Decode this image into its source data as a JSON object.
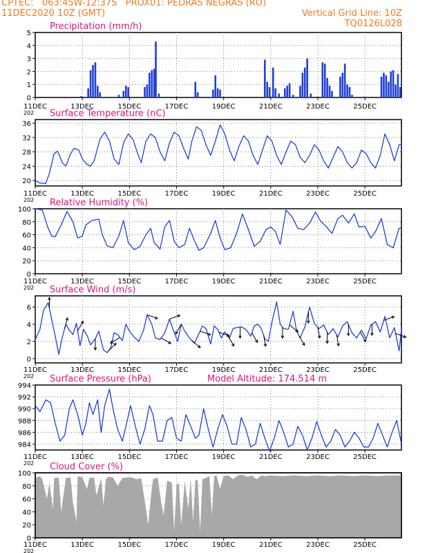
{
  "header": {
    "line1_left": "CPTEC:   063:45W-12:37S   PROX01: PEDRAS NEGRAS (RO)",
    "line2_left": "11DEC2020 10Z (GMT)",
    "line2_right": "Vertical Grid Line: 10Z",
    "line3_right": "TQ0126L028"
  },
  "x_axis": {
    "ticks": [
      "11DEC",
      "13DEC",
      "15DEC",
      "17DEC",
      "19DEC",
      "21DEC",
      "23DEC",
      "25DEC"
    ],
    "year_stub": "202"
  },
  "colors": {
    "title": "#e0117f",
    "header": "#f07a1e",
    "line": "#1f3fd6",
    "cloud": "#a8a8a8"
  },
  "chart_data": [
    {
      "id": "precip",
      "type": "bar",
      "title": "Precipitation (mm/h)",
      "ylim": [
        0,
        5
      ],
      "yticks": [
        0,
        1,
        2,
        3,
        4,
        5
      ],
      "x_unit": "days since 11DEC 10Z",
      "points": [
        [
          1.95,
          0.1
        ],
        [
          2.25,
          0.7
        ],
        [
          2.35,
          2.1
        ],
        [
          2.45,
          2.5
        ],
        [
          2.55,
          2.7
        ],
        [
          2.65,
          0.9
        ],
        [
          2.75,
          0.4
        ],
        [
          3.55,
          0.2
        ],
        [
          3.75,
          0.5
        ],
        [
          3.85,
          0.9
        ],
        [
          3.95,
          0.8
        ],
        [
          4.65,
          0.8
        ],
        [
          4.75,
          1.0
        ],
        [
          4.85,
          1.9
        ],
        [
          4.95,
          2.1
        ],
        [
          5.05,
          2.2
        ],
        [
          5.12,
          4.3
        ],
        [
          5.25,
          0.3
        ],
        [
          6.8,
          1.2
        ],
        [
          6.9,
          0.4
        ],
        [
          7.55,
          0.6
        ],
        [
          7.65,
          1.7
        ],
        [
          7.75,
          0.7
        ],
        [
          7.85,
          0.6
        ],
        [
          9.75,
          2.9
        ],
        [
          9.85,
          1.2
        ],
        [
          9.95,
          0.8
        ],
        [
          10.1,
          2.3
        ],
        [
          10.2,
          0.7
        ],
        [
          10.35,
          0.3
        ],
        [
          10.6,
          0.7
        ],
        [
          10.7,
          0.9
        ],
        [
          10.8,
          1.1
        ],
        [
          10.95,
          0.2
        ],
        [
          11.25,
          0.9
        ],
        [
          11.35,
          1.9
        ],
        [
          11.45,
          2.3
        ],
        [
          11.55,
          3.0
        ],
        [
          11.7,
          0.3
        ],
        [
          12.2,
          2.7
        ],
        [
          12.3,
          2.6
        ],
        [
          12.4,
          1.5
        ],
        [
          12.5,
          0.9
        ],
        [
          12.6,
          0.5
        ],
        [
          12.95,
          1.6
        ],
        [
          13.05,
          1.9
        ],
        [
          13.15,
          2.6
        ],
        [
          13.25,
          1.0
        ],
        [
          13.35,
          0.8
        ],
        [
          13.45,
          0.2
        ],
        [
          14.7,
          1.6
        ],
        [
          14.8,
          1.9
        ],
        [
          14.9,
          1.7
        ],
        [
          15.0,
          1.2
        ],
        [
          15.1,
          2.0
        ],
        [
          15.2,
          2.1
        ],
        [
          15.3,
          1.0
        ],
        [
          15.4,
          1.8
        ],
        [
          15.5,
          0.8
        ]
      ]
    },
    {
      "id": "temp",
      "type": "line",
      "title": "Surface Temperature (nC)",
      "ylim": [
        18.5,
        37
      ],
      "yticks": [
        20,
        24,
        28,
        32,
        36
      ],
      "x": [
        0,
        0.2,
        0.45,
        0.6,
        0.8,
        0.95,
        1.15,
        1.3,
        1.5,
        1.65,
        1.85,
        2.0,
        2.2,
        2.35,
        2.5,
        2.75,
        2.95,
        3.15,
        3.35,
        3.55,
        3.75,
        3.95,
        4.15,
        4.35,
        4.5,
        4.7,
        4.9,
        5.1,
        5.3,
        5.5,
        5.7,
        5.9,
        6.1,
        6.3,
        6.5,
        6.65,
        6.85,
        7.05,
        7.25,
        7.45,
        7.65,
        7.85,
        8.05,
        8.25,
        8.45,
        8.65,
        8.85,
        9.05,
        9.25,
        9.45,
        9.65,
        9.85,
        10.05,
        10.25,
        10.45,
        10.65,
        10.85,
        11.05,
        11.25,
        11.45,
        11.65,
        11.85,
        12.05,
        12.25,
        12.45,
        12.65,
        12.85,
        13.05,
        13.25,
        13.45,
        13.65,
        13.85,
        14.05,
        14.25,
        14.45,
        14.65,
        14.85,
        15.05,
        15.25,
        15.45,
        15.55
      ],
      "y": [
        20,
        19.3,
        19.2,
        22,
        27.5,
        28.2,
        25,
        24,
        27.5,
        29,
        28.5,
        26,
        24.5,
        24,
        25.5,
        31.5,
        33.5,
        31,
        26,
        24.5,
        30.5,
        33,
        31.5,
        27.5,
        25,
        31,
        33,
        32,
        28,
        25.5,
        30.5,
        33.5,
        32.5,
        29,
        26,
        31,
        35,
        34,
        30,
        27,
        31,
        35.5,
        33,
        28.5,
        25.5,
        29.5,
        32.5,
        31,
        27,
        24.5,
        28.5,
        32.5,
        31,
        27,
        24.5,
        28,
        31,
        30,
        26.5,
        25,
        27,
        30,
        28.5,
        25.5,
        23.5,
        26.5,
        29.5,
        28,
        25,
        23.5,
        25,
        28.5,
        27.5,
        25,
        23.5,
        27,
        33,
        30,
        25.5,
        30,
        30
      ]
    },
    {
      "id": "rh",
      "type": "line",
      "title": "Relative Humidity (%)",
      "ylim": [
        0,
        100
      ],
      "yticks": [
        0,
        20,
        40,
        60,
        80,
        100
      ],
      "x": [
        0,
        0.3,
        0.55,
        0.7,
        0.85,
        1.1,
        1.35,
        1.6,
        1.8,
        2.0,
        2.15,
        2.4,
        2.7,
        2.85,
        3.05,
        3.3,
        3.55,
        3.75,
        3.95,
        4.2,
        4.45,
        4.7,
        4.9,
        5.05,
        5.3,
        5.5,
        5.7,
        5.9,
        6.1,
        6.35,
        6.55,
        6.75,
        6.95,
        7.15,
        7.45,
        7.65,
        7.85,
        8.05,
        8.3,
        8.55,
        8.8,
        9.05,
        9.3,
        9.55,
        9.8,
        10.0,
        10.2,
        10.4,
        10.65,
        10.9,
        11.15,
        11.4,
        11.65,
        11.9,
        12.1,
        12.35,
        12.6,
        12.85,
        13.05,
        13.3,
        13.55,
        13.75,
        14.0,
        14.25,
        14.45,
        14.7,
        14.95,
        15.2,
        15.45,
        15.55
      ],
      "y": [
        100,
        98,
        70,
        58,
        57,
        75,
        96,
        80,
        55,
        58,
        75,
        82,
        84,
        60,
        43,
        40,
        58,
        82,
        48,
        37,
        42,
        60,
        70,
        48,
        38,
        72,
        82,
        50,
        40,
        45,
        70,
        52,
        36,
        40,
        62,
        82,
        55,
        37,
        40,
        62,
        92,
        68,
        42,
        50,
        68,
        72,
        65,
        45,
        98,
        88,
        70,
        68,
        78,
        95,
        82,
        73,
        62,
        85,
        90,
        78,
        92,
        72,
        73,
        55,
        65,
        85,
        45,
        40,
        70,
        70
      ]
    },
    {
      "id": "wind",
      "type": "line",
      "title": "Surface Wind (m/s)",
      "ylim": [
        -0.5,
        7.3
      ],
      "yticks": [
        0,
        2,
        4,
        6
      ],
      "x": [
        0,
        0.2,
        0.35,
        0.55,
        0.7,
        0.85,
        1.0,
        1.15,
        1.3,
        1.45,
        1.6,
        1.75,
        1.9,
        2.05,
        2.2,
        2.35,
        2.55,
        2.7,
        2.9,
        3.05,
        3.2,
        3.35,
        3.5,
        3.7,
        3.85,
        4.0,
        4.2,
        4.4,
        4.6,
        4.75,
        4.95,
        5.1,
        5.3,
        5.5,
        5.7,
        5.85,
        6.05,
        6.2,
        6.35,
        6.55,
        6.75,
        6.9,
        7.1,
        7.25,
        7.45,
        7.6,
        7.75,
        7.9,
        8.05,
        8.25,
        8.4,
        8.55,
        8.75,
        8.95,
        9.15,
        9.3,
        9.45,
        9.6,
        9.75,
        9.9,
        10.05,
        10.25,
        10.4,
        10.55,
        10.75,
        10.95,
        11.1,
        11.25,
        11.45,
        11.65,
        11.85,
        12.05,
        12.25,
        12.45,
        12.65,
        12.85,
        13.05,
        13.25,
        13.45,
        13.65,
        13.85,
        14.05,
        14.25,
        14.45,
        14.65,
        14.85,
        15.05,
        15.25,
        15.45,
        15.55
      ],
      "y": [
        2.2,
        3.4,
        5.6,
        6.5,
        4.5,
        2.6,
        0.5,
        2.5,
        4.0,
        3.3,
        2.8,
        4.1,
        1.5,
        3.4,
        2.7,
        1.6,
        2.3,
        3.2,
        1.0,
        0.7,
        1.2,
        3.0,
        2.8,
        2.1,
        4.0,
        3.2,
        2.5,
        2.0,
        3.3,
        5.1,
        4.0,
        2.4,
        2.2,
        3.0,
        4.6,
        3.4,
        2.0,
        4.0,
        3.2,
        2.4,
        1.8,
        2.6,
        3.8,
        3.5,
        1.7,
        3.8,
        3.4,
        2.4,
        3.1,
        2.4,
        3.5,
        3.6,
        3.7,
        3.4,
        2.6,
        3.8,
        4.0,
        3.5,
        2.3,
        2.0,
        4.2,
        6.6,
        4.0,
        3.5,
        3.4,
        5.5,
        3.2,
        2.4,
        3.7,
        6.0,
        4.1,
        3.5,
        3.9,
        2.8,
        3.5,
        2.5,
        3.8,
        4.3,
        3.0,
        2.4,
        3.3,
        2.3,
        3.9,
        4.3,
        3.1,
        4.9,
        2.4,
        3.6,
        0.9,
        3.4
      ],
      "arrows": [
        [
          0.6,
          90
        ],
        [
          1.25,
          75
        ],
        [
          1.8,
          60
        ],
        [
          2.55,
          -90
        ],
        [
          3.1,
          45
        ],
        [
          3.6,
          -150
        ],
        [
          4.75,
          -20
        ],
        [
          5.35,
          -30
        ],
        [
          5.7,
          20
        ],
        [
          6.2,
          -120
        ],
        [
          6.65,
          -40
        ],
        [
          7.0,
          -20
        ],
        [
          7.8,
          -20
        ],
        [
          8.2,
          -60
        ],
        [
          8.7,
          -90
        ],
        [
          9.2,
          -60
        ],
        [
          9.7,
          -80
        ],
        [
          10.5,
          -90
        ],
        [
          10.8,
          -40
        ],
        [
          11.2,
          -60
        ],
        [
          11.6,
          -90
        ],
        [
          12.0,
          -80
        ],
        [
          12.4,
          -90
        ],
        [
          12.8,
          -80
        ],
        [
          13.3,
          -90
        ],
        [
          13.8,
          -60
        ],
        [
          14.3,
          -90
        ],
        [
          14.8,
          20
        ],
        [
          15.3,
          -20
        ]
      ]
    },
    {
      "id": "press",
      "type": "line",
      "title": "Surface Pressure (hPa)",
      "subtitle": "Model Altitude: 174.514 m",
      "ylim": [
        983,
        994
      ],
      "yticks": [
        984,
        986,
        988,
        990,
        992,
        994
      ],
      "x": [
        0,
        0.2,
        0.45,
        0.65,
        0.85,
        1.05,
        1.25,
        1.45,
        1.6,
        1.8,
        2.0,
        2.15,
        2.3,
        2.45,
        2.65,
        2.8,
        2.95,
        3.15,
        3.3,
        3.5,
        3.7,
        3.85,
        4.05,
        4.25,
        4.45,
        4.65,
        4.85,
        5.0,
        5.2,
        5.4,
        5.6,
        5.8,
        6.0,
        6.2,
        6.4,
        6.6,
        6.8,
        6.95,
        7.15,
        7.35,
        7.55,
        7.75,
        7.95,
        8.15,
        8.35,
        8.55,
        8.75,
        8.95,
        9.15,
        9.35,
        9.55,
        9.75,
        9.95,
        10.15,
        10.35,
        10.55,
        10.75,
        10.95,
        11.15,
        11.35,
        11.55,
        11.75,
        11.95,
        12.15,
        12.35,
        12.55,
        12.75,
        12.95,
        13.15,
        13.35,
        13.55,
        13.75,
        13.95,
        14.15,
        14.35,
        14.55,
        14.75,
        14.95,
        15.15,
        15.35,
        15.55
      ],
      "y": [
        990.5,
        989.5,
        991.5,
        991,
        987.5,
        984.5,
        985.5,
        990,
        991.5,
        989,
        985.5,
        987.5,
        991,
        989,
        991.5,
        986,
        990.5,
        993.3,
        990,
        986.5,
        984.5,
        987,
        990.5,
        987,
        984,
        986.5,
        990.5,
        989,
        984.5,
        984.5,
        988,
        988.5,
        985,
        984.5,
        989,
        987,
        985,
        985.5,
        990,
        986.5,
        983.5,
        986.5,
        989,
        987,
        984,
        984,
        988.5,
        986.5,
        983.5,
        984,
        987.5,
        985,
        982.8,
        985,
        988,
        986,
        983.5,
        984,
        987,
        985.5,
        983,
        985,
        987.8,
        985.5,
        983.5,
        984.5,
        986.5,
        985.5,
        983.5,
        984.5,
        986,
        985,
        983.5,
        983.5,
        985,
        987.5,
        985.5,
        983.5,
        986,
        988,
        984
      ]
    },
    {
      "id": "cloud",
      "type": "area",
      "title": "Cloud Cover (%)",
      "ylim": [
        0,
        100
      ],
      "yticks": [
        0,
        20,
        40,
        60,
        80,
        100
      ],
      "x": [
        0,
        0.2,
        0.3,
        0.5,
        0.6,
        0.75,
        0.8,
        1.0,
        1.1,
        1.3,
        1.5,
        1.6,
        1.75,
        1.8,
        2.0,
        2.2,
        2.3,
        2.5,
        2.6,
        2.8,
        2.9,
        3.0,
        3.1,
        3.3,
        3.5,
        3.7,
        3.9,
        4.1,
        4.3,
        4.5,
        4.7,
        4.8,
        4.9,
        5.0,
        5.2,
        5.35,
        5.45,
        5.6,
        5.8,
        5.9,
        6.0,
        6.1,
        6.2,
        6.35,
        6.5,
        6.6,
        6.7,
        6.8,
        6.9,
        7.0,
        7.1,
        7.3,
        7.4,
        7.5,
        7.6,
        7.7,
        7.85,
        8.0,
        8.2,
        8.4,
        8.6,
        8.8,
        9.0,
        9.2,
        9.4,
        9.6,
        9.8,
        10.0,
        10.5,
        11.0,
        11.5,
        12.0,
        12.5,
        13.0,
        13.5,
        14.0,
        14.5,
        15.0,
        15.55
      ],
      "y": [
        92,
        95,
        90,
        60,
        85,
        45,
        92,
        93,
        40,
        92,
        93,
        55,
        25,
        95,
        93,
        75,
        92,
        93,
        65,
        92,
        50,
        90,
        94,
        93,
        80,
        92,
        93,
        93,
        90,
        92,
        45,
        20,
        60,
        90,
        93,
        55,
        35,
        88,
        85,
        10,
        80,
        85,
        20,
        88,
        45,
        93,
        25,
        90,
        88,
        10,
        90,
        93,
        95,
        35,
        95,
        96,
        75,
        95,
        96,
        90,
        96,
        97,
        94,
        96,
        90,
        96,
        95,
        96,
        95,
        96,
        95,
        96,
        95,
        96,
        95,
        96,
        95,
        96,
        96
      ]
    }
  ]
}
